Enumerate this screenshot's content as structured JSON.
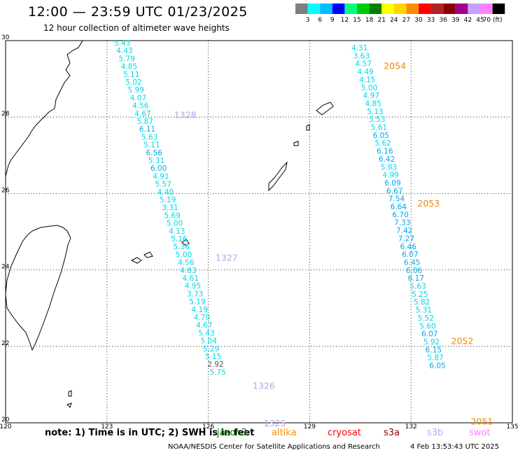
{
  "header": {
    "title": "12:00 — 23:59 UTC 01/23/2025",
    "subtitle": "12 hour collection of altimeter wave heights"
  },
  "colorbar": {
    "colors": [
      "#7f7f7f",
      "#00ffff",
      "#00bfff",
      "#0000ff",
      "#00ff7f",
      "#00cc00",
      "#008000",
      "#ffff00",
      "#ffd700",
      "#ff8c00",
      "#ff0000",
      "#b22222",
      "#8b0000",
      "#a0008b",
      "#c8a0ff",
      "#ff80ff",
      "#000000"
    ],
    "labels": [
      "3",
      "6",
      "9",
      "12",
      "15",
      "18",
      "21",
      "24",
      "27",
      "30",
      "33",
      "36",
      "39",
      "42",
      "45",
      "70 (ft)"
    ]
  },
  "axes": {
    "lon_ticks": [
      "120",
      "123",
      "126",
      "129",
      "132",
      "135"
    ],
    "lat_ticks": [
      "30",
      "28",
      "26",
      "24",
      "22",
      "20"
    ],
    "lon_range": [
      120,
      135
    ],
    "lat_range": [
      20,
      30
    ]
  },
  "tracks": [
    {
      "heights": [
        "5.43",
        "4.43",
        "5.79",
        "4.85",
        "5.11",
        "5.02",
        "5.99",
        "4.07",
        "4.56",
        "4.67",
        "5.87",
        "6.11",
        "5.63",
        "5.11",
        "6.56",
        "5.31",
        "6.00",
        "4.91",
        "5.57",
        "4.40",
        "5.19",
        "3.31",
        "5.69",
        "5.00",
        "4.13",
        "5.16",
        "5.36",
        "5.00",
        "4.56",
        "4.83",
        "4.61",
        "4.95",
        "3.73",
        "5.19",
        "4.19",
        "4.70",
        "4.67",
        "5.43",
        "5.04",
        "5.29",
        "5.15",
        "2.92",
        "5.75"
      ],
      "pass_labels": [
        {
          "text": "1328",
          "lat": 28.07
        },
        {
          "text": "1327",
          "lat": 24.33
        },
        {
          "text": "1326",
          "lat": 20.98
        },
        {
          "text": "1325",
          "lat": 20.0
        }
      ]
    },
    {
      "heights": [
        "4.31",
        "3.63",
        "4.57",
        "4.49",
        "4.15",
        "5.00",
        "4.97",
        "4.85",
        "5.13",
        "5.53",
        "5.61",
        "6.05",
        "5.62",
        "6.16",
        "6.42",
        "5.83",
        "4.99",
        "6.09",
        "6.67",
        "7.54",
        "6.64",
        "6.70",
        "7.33",
        "7.42",
        "7.27",
        "6.46",
        "6.07",
        "6.45",
        "6.06",
        "6.17",
        "5.63",
        "5.25",
        "5.82",
        "5.31",
        "5.52",
        "5.60",
        "6.07",
        "5.92",
        "6.15",
        "5.87",
        "6.05"
      ],
      "pass_labels": [
        {
          "text": "2054",
          "lat": 29.35
        },
        {
          "text": "2053",
          "lat": 25.75
        },
        {
          "text": "2052",
          "lat": 22.15
        },
        {
          "text": "2051",
          "lat": 20.05
        }
      ]
    }
  ],
  "note": {
    "text": "note:  1) Time is in UTC; 2) SWH is in feet",
    "satellites": [
      {
        "name": "jason3",
        "color": "#008000"
      },
      {
        "name": "altika",
        "color": "#ff8c00"
      },
      {
        "name": "cryosat",
        "color": "#ff0000"
      },
      {
        "name": "s3a",
        "color": "#8b0000"
      },
      {
        "name": "s3b",
        "color": "#c8a0ff"
      },
      {
        "name": "swot",
        "color": "#ff80ff"
      }
    ]
  },
  "footer": {
    "credit": "NOAA/NESDIS Center for Satellite Applications and Research",
    "timestamp": "4 Feb 13:53:43 UTC 2025"
  }
}
